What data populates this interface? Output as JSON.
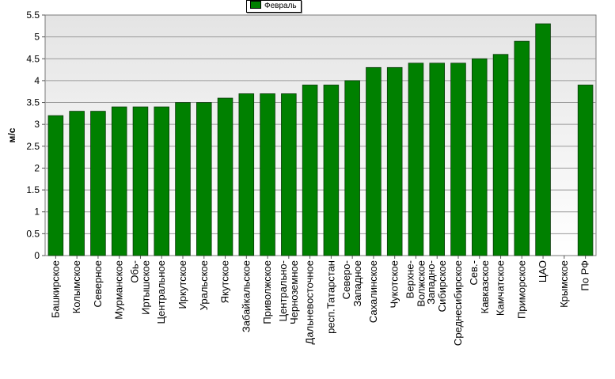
{
  "chart_data": {
    "type": "bar",
    "ylabel": "м/с",
    "ylim": [
      0,
      5.5
    ],
    "yticks": [
      0,
      0.5,
      1,
      1.5,
      2,
      2.5,
      3,
      3.5,
      4,
      4.5,
      5,
      5.5
    ],
    "grid": true,
    "legend_position": "top-center",
    "categories": [
      [
        "Башкирское"
      ],
      [
        "Колымское"
      ],
      [
        "Северное"
      ],
      [
        "Мурманское"
      ],
      [
        "Обь-",
        "Иртышское"
      ],
      [
        "Центральное"
      ],
      [
        "Иркутское"
      ],
      [
        "Уральское"
      ],
      [
        "Якутское"
      ],
      [
        "Забайкальское"
      ],
      [
        "Приволжское"
      ],
      [
        "Центрально-",
        "Черноземное"
      ],
      [
        "Дальневосточное"
      ],
      [
        "респ.Татарстан"
      ],
      [
        "Северо-",
        "Западное"
      ],
      [
        "Сахалинское"
      ],
      [
        "Чукотское"
      ],
      [
        "Верхне-",
        "Волжское"
      ],
      [
        "Западно-",
        "Сибирское"
      ],
      [
        "Среднесибирское"
      ],
      [
        "Сев.-",
        "Кавказское"
      ],
      [
        "Камчатское"
      ],
      [
        "Приморское"
      ],
      [
        "ЦАО"
      ],
      [
        "Крымское"
      ],
      [
        "По РФ"
      ]
    ],
    "series": [
      {
        "name": "Февраль",
        "color": "#008000",
        "values": [
          3.2,
          3.3,
          3.3,
          3.4,
          3.4,
          3.4,
          3.5,
          3.5,
          3.6,
          3.7,
          3.7,
          3.7,
          3.9,
          3.9,
          4.0,
          4.3,
          4.3,
          4.4,
          4.4,
          4.4,
          4.5,
          4.6,
          4.9,
          5.3,
          null,
          3.9
        ]
      }
    ]
  }
}
